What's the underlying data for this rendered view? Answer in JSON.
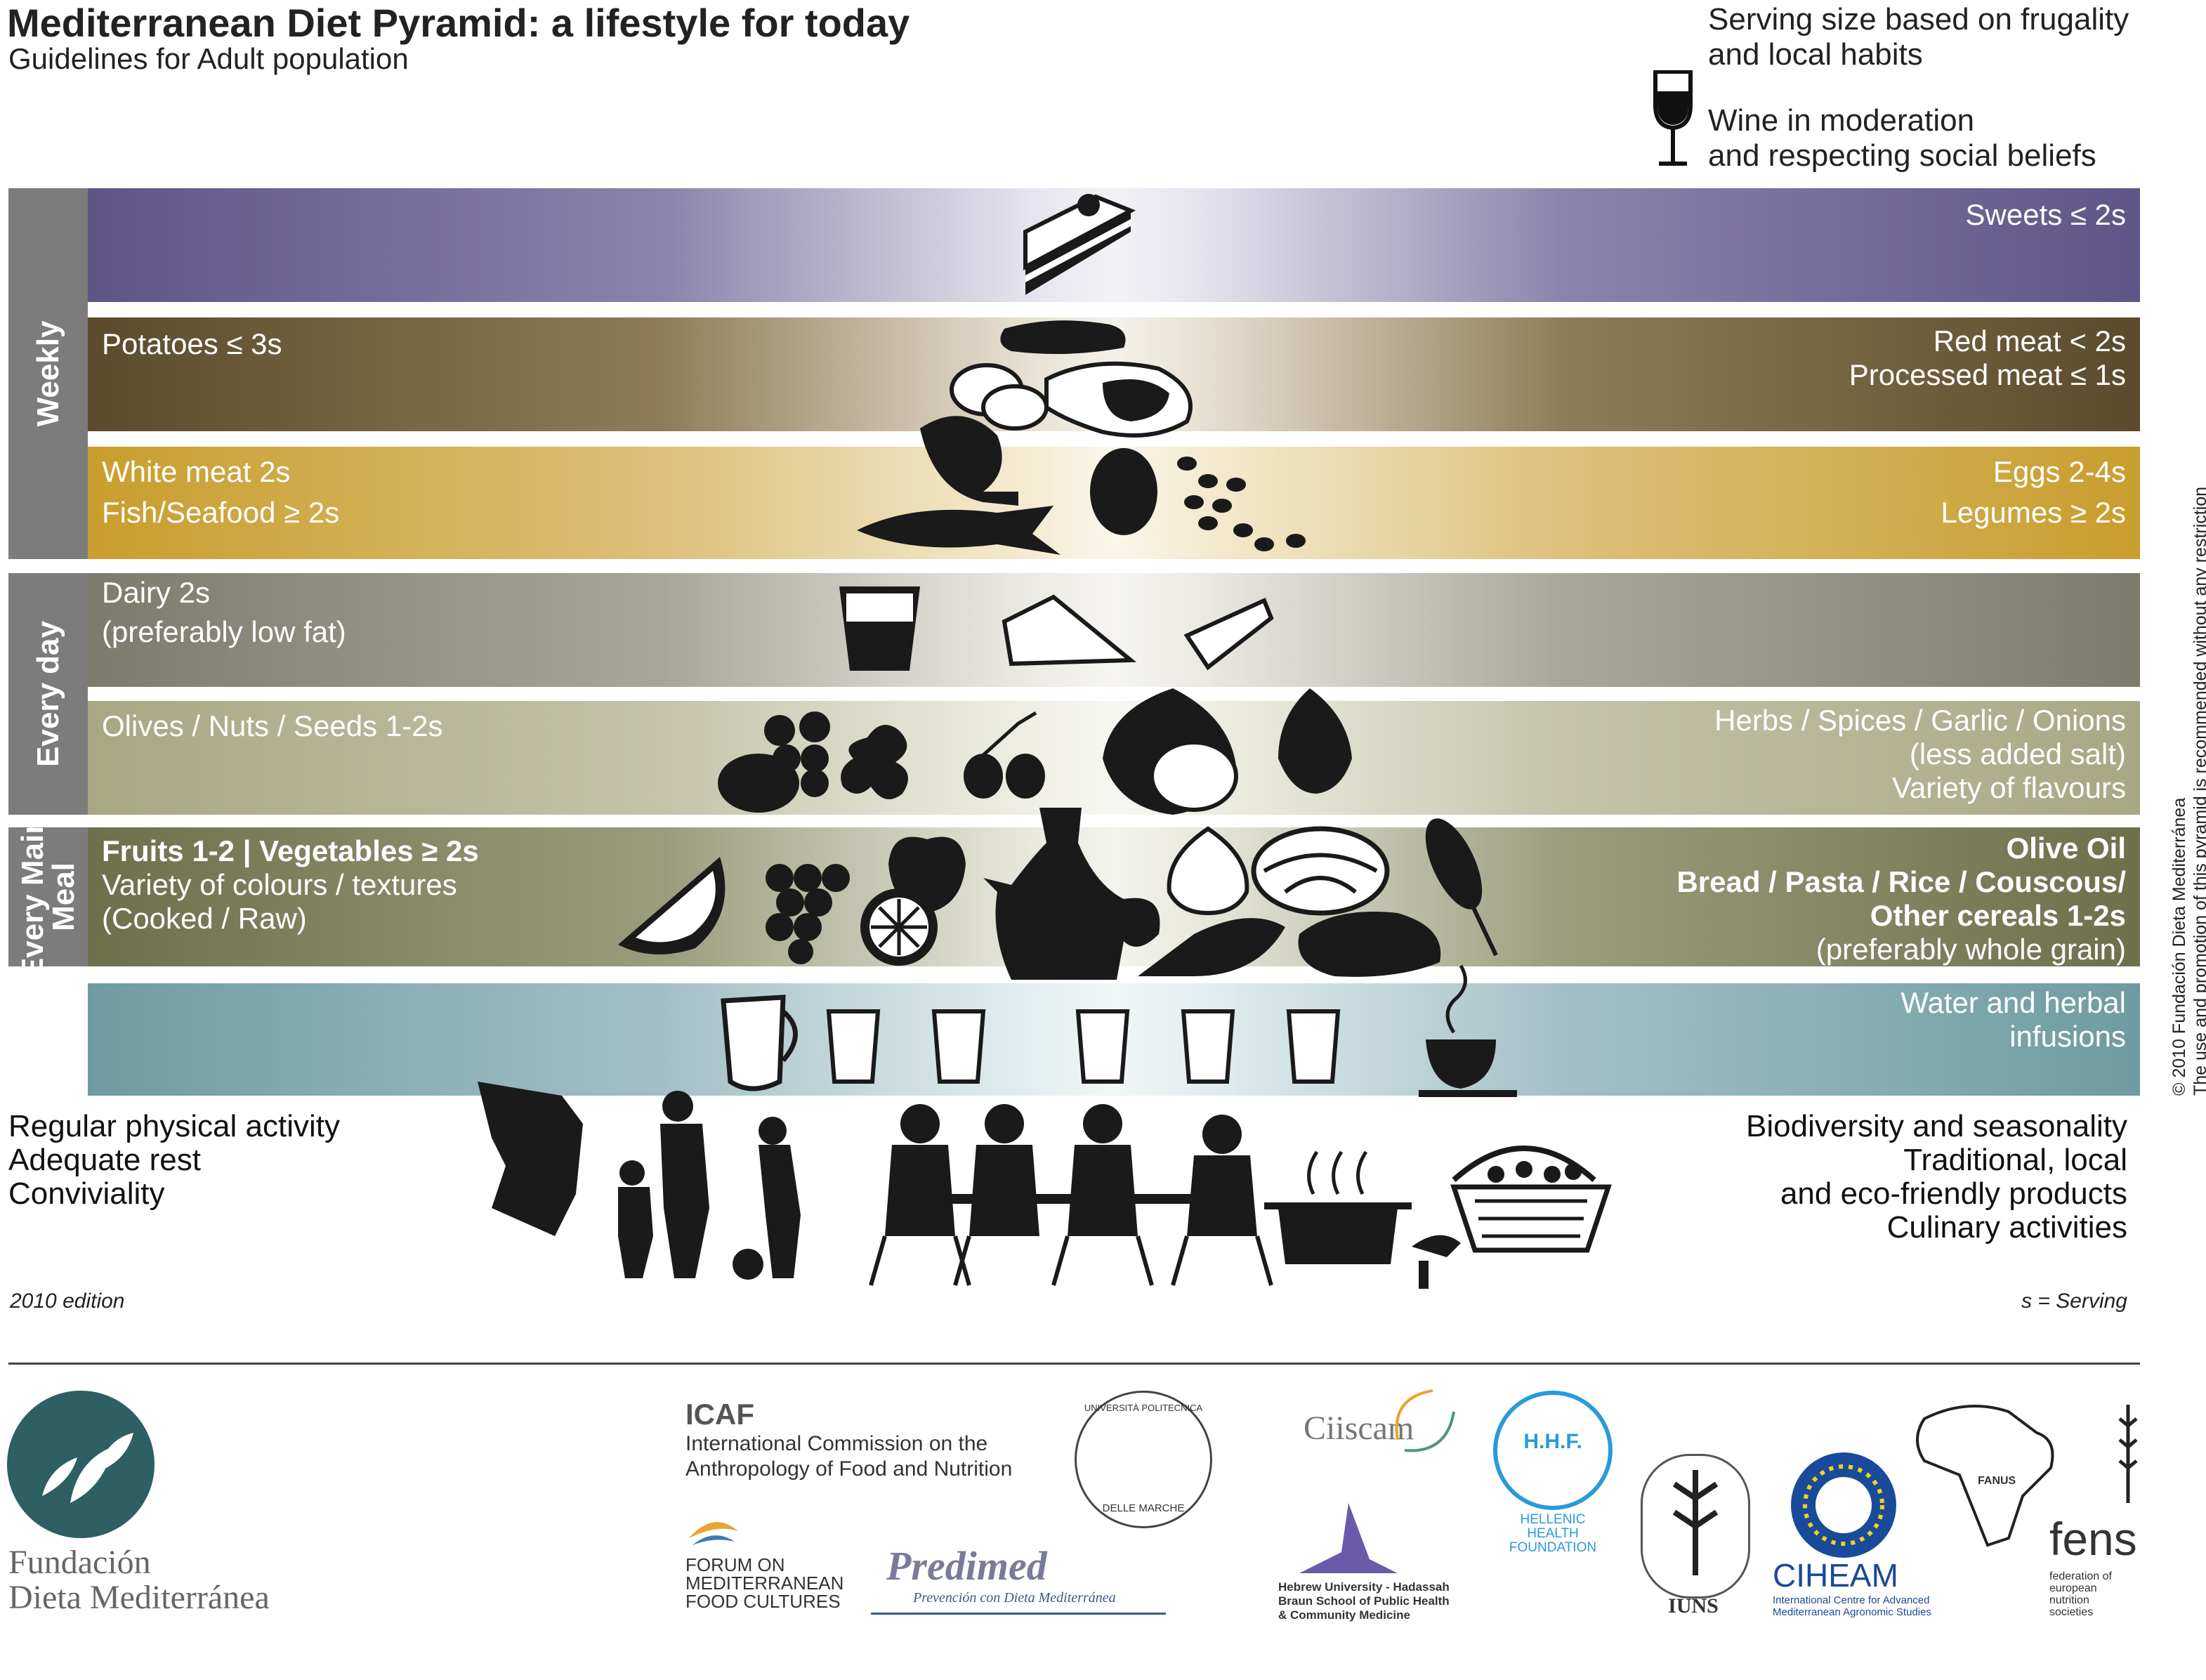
{
  "header": {
    "title": "Mediterranean Diet Pyramid: a lifestyle for today",
    "subtitle": "Guidelines for Adult population",
    "legend": {
      "serving_line1": "Serving size based on frugality",
      "serving_line2": "and local habits",
      "wine_line1": "Wine in moderation",
      "wine_line2": "and respecting social beliefs"
    }
  },
  "side_labels": {
    "weekly": "Weekly",
    "every_day": "Every day",
    "every_main_meal_line1": "Every Main",
    "every_main_meal_line2": "Meal"
  },
  "bands": {
    "sweets": {
      "right": "Sweets ≤ 2s"
    },
    "meat": {
      "left": "Potatoes ≤ 3s",
      "right1": "Red meat < 2s",
      "right2": "Processed meat ≤ 1s"
    },
    "fish": {
      "left1": "White meat 2s",
      "left2": "Fish/Seafood ≥ 2s",
      "right1": "Eggs 2-4s",
      "right2": "Legumes ≥ 2s"
    },
    "dairy": {
      "left1": "Dairy 2s",
      "left2": "(preferably low fat)"
    },
    "olives": {
      "left": "Olives / Nuts / Seeds  1-2s",
      "right1": "Herbs / Spices / Garlic / Onions",
      "right2": "(less added salt)",
      "right3": "Variety of flavours"
    },
    "fruits": {
      "left1": "Fruits 1-2 | Vegetables ≥ 2s",
      "left2": "Variety of colours / textures",
      "left3": "(Cooked / Raw)",
      "right1": "Olive Oil",
      "right2": "Bread / Pasta / Rice / Couscous/",
      "right3": "Other cereals 1-2s",
      "right4": "(preferably whole grain)"
    },
    "water": {
      "right1": "Water and herbal",
      "right2": "infusions"
    }
  },
  "base": {
    "left1": "Regular physical activity",
    "left2": "Adequate rest",
    "left3": "Conviviality",
    "right1": "Biodiversity and seasonality",
    "right2": "Traditional, local",
    "right3": "and eco-friendly products",
    "right4": "Culinary activities"
  },
  "footer": {
    "edition": "2010 edition",
    "serving_note": "s = Serving",
    "copyright_line1": "© 2010 Fundación Dieta Mediterránea",
    "copyright_line2": "The use and promotion of this pyramid is recommended without any restriction"
  },
  "logos": {
    "fdm_line1": "Fundación",
    "fdm_line2": "Dieta Mediterránea",
    "icaf_abbr": "ICAF",
    "icaf_line1": "International Commission on the",
    "icaf_line2": "Anthropology of Food and Nutrition",
    "forum_line1": "FORUM ON",
    "forum_line2": "MEDITERRANEAN",
    "forum_line3": "FOOD CULTURES",
    "predimed": "Predimed",
    "predimed_sub": "Prevención con Dieta Mediterránea",
    "univpm_top": "UNIVERSITÀ POLITECNICA",
    "univpm_bottom": "DELLE MARCHE",
    "ciiscam": "Ciiscam",
    "hebrew_line1": "Hebrew University - Hadassah",
    "hebrew_line2": "Braun School of Public Health",
    "hebrew_line3": "& Community Medicine",
    "hhf_abbr": "H.H.F.",
    "hhf_line1": "HELLENIC",
    "hhf_line2": "HEALTH",
    "hhf_line3": "FOUNDATION",
    "iuns": "IUNS",
    "ciheam": "CIHEAM",
    "ciheam_line1": "International Centre for Advanced",
    "ciheam_line2": "Mediterranean Agronomic Studies",
    "fanus": "FANUS",
    "fens_abbr": "fens",
    "fens_line1": "federation of",
    "fens_line2": "european",
    "fens_line3": "nutrition",
    "fens_line4": "societies"
  },
  "colors": {
    "sweets": "#5f5586",
    "meat": "#5b4a2c",
    "fish": "#c99d2d",
    "dairy": "#7d7b6e",
    "olives": "#a8a784",
    "fruits": "#6e704c",
    "water": "#6e9ba1",
    "side_tab": "#7c7c7c",
    "fdm_teal": "#2d5f63"
  },
  "icons": [
    "cake-icon",
    "sausage-icon",
    "potatoes-icon",
    "steak-icon",
    "chicken-leg-icon",
    "egg-icon",
    "beans-icon",
    "fish-icon",
    "yogurt-icon",
    "cheese-icon",
    "nuts-icon",
    "parsley-icon",
    "olives-icon",
    "onion-icon",
    "garlic-icon",
    "watermelon-icon",
    "grapes-icon",
    "apple-icon",
    "orange-slice-icon",
    "olive-oil-jug-icon",
    "artichoke-icon",
    "cabbage-icon",
    "chard-icon",
    "bread-icon",
    "wheat-icon",
    "pitcher-icon",
    "water-glass-icon",
    "tea-cup-icon",
    "wine-glass-icon",
    "exercise-people-icon",
    "family-dinner-icon",
    "cooking-pot-icon",
    "basket-icon",
    "mushrooms-icon"
  ]
}
